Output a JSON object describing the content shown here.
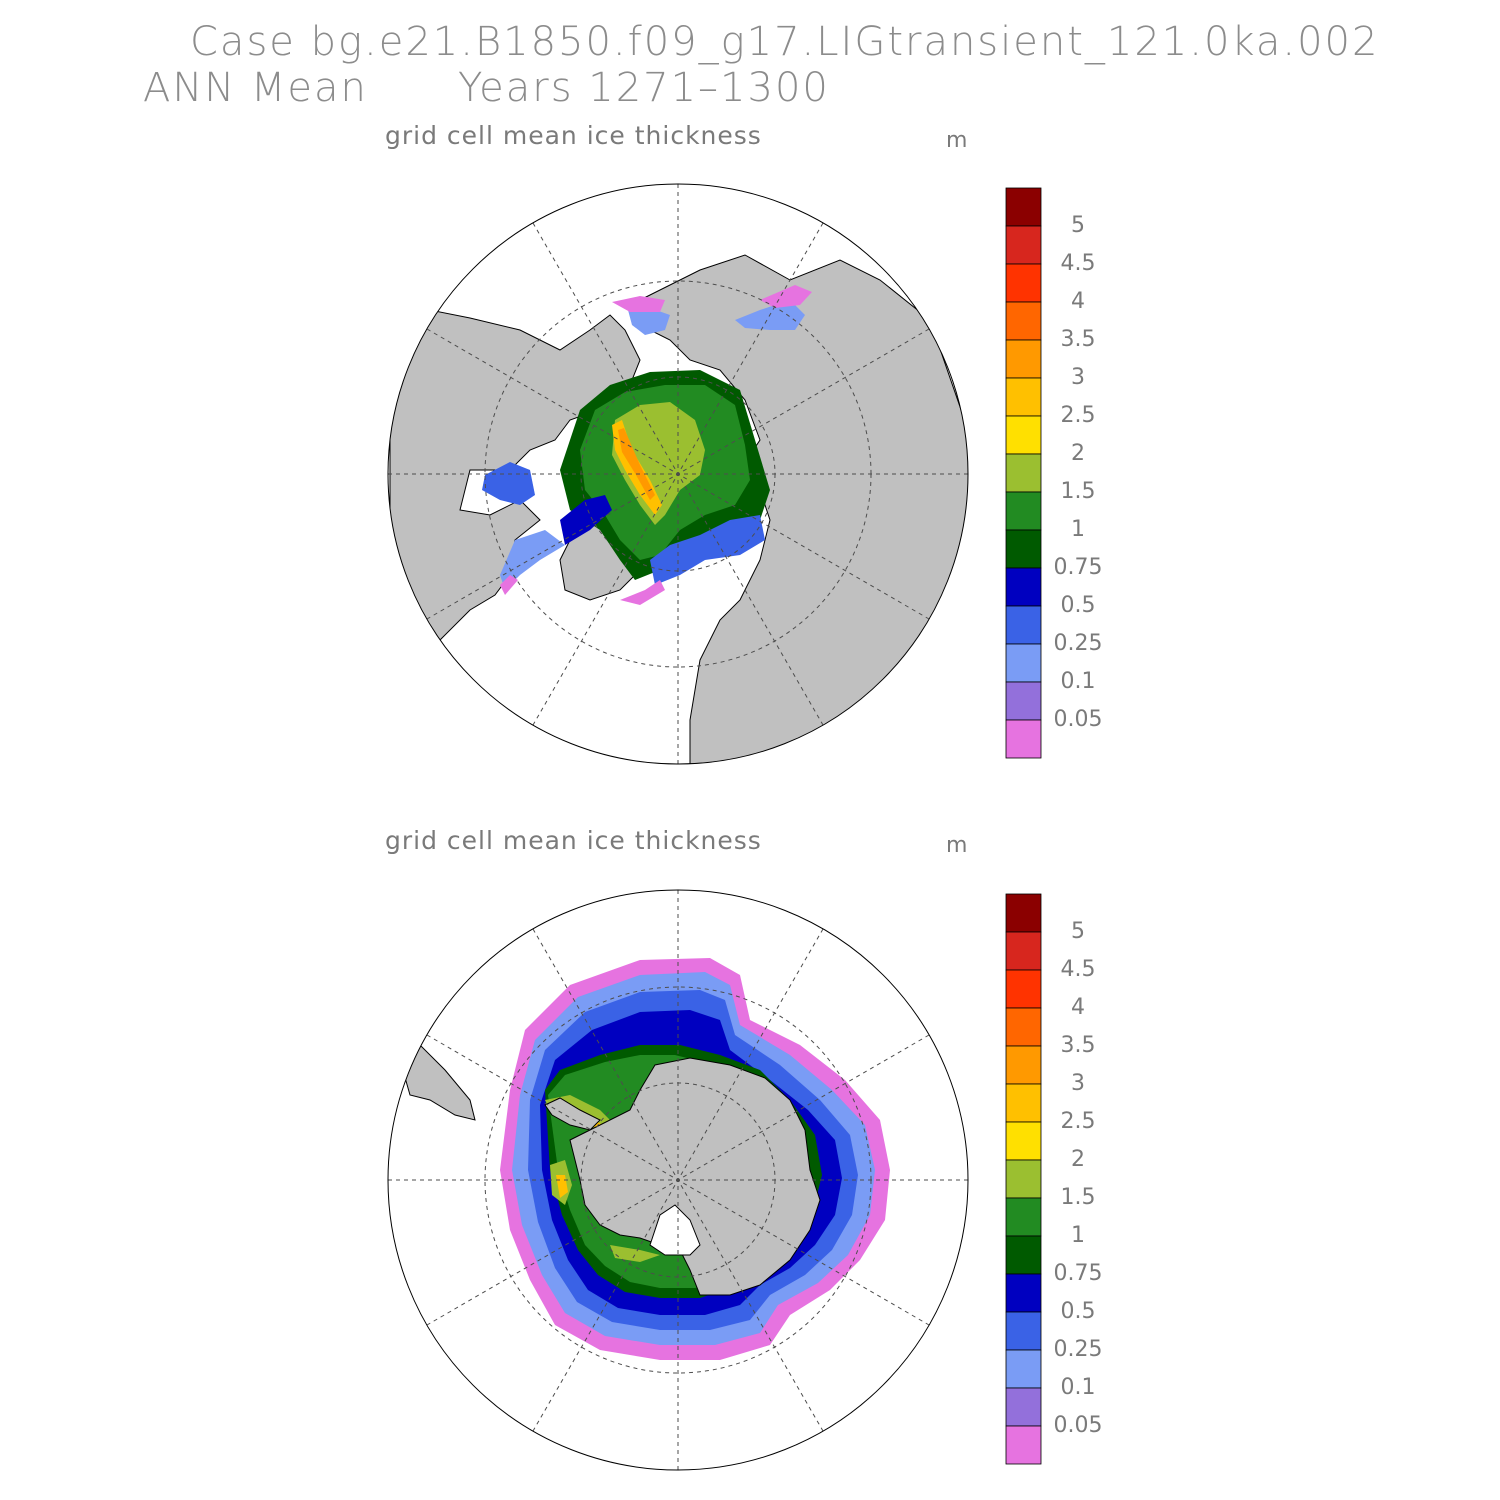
{
  "header": {
    "case_line": "Case bg.e21.B1850.f09_g17.LIGtransient_121.0ka.002",
    "mean_label": "ANN Mean",
    "years_label": "Years 1271–1300"
  },
  "panels": [
    {
      "id": "north",
      "title": "grid cell mean ice thickness",
      "unit": "m"
    },
    {
      "id": "south",
      "title": "grid cell mean ice thickness",
      "unit": "m"
    }
  ],
  "colorbar": {
    "labels": [
      "5",
      "4.5",
      "4",
      "3.5",
      "3",
      "2.5",
      "2",
      "1.5",
      "1",
      "0.75",
      "0.5",
      "0.25",
      "0.1",
      "0.05"
    ],
    "colors_top_to_bottom": [
      "#8b0000",
      "#d7261e",
      "#ff3300",
      "#ff6600",
      "#ff9900",
      "#ffc000",
      "#ffe000",
      "#9bbf30",
      "#228b22",
      "#005a00",
      "#0000c0",
      "#3a62e6",
      "#7a9cf5",
      "#9370db",
      "#e673e0"
    ]
  },
  "colors": {
    "land": "#c0c0c0",
    "ocean": "#ffffff",
    "grid": "#4d4d4d"
  }
}
